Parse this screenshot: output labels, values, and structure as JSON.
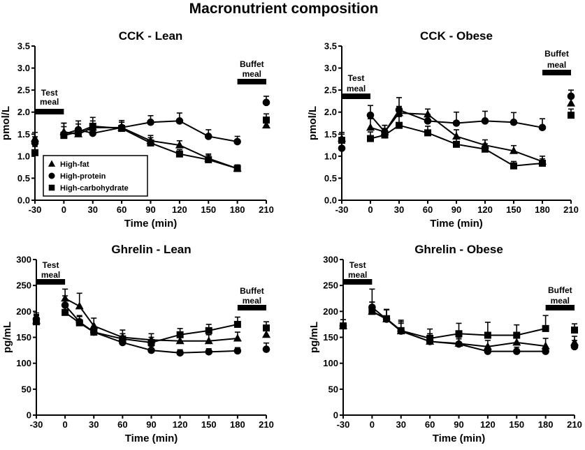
{
  "figure_title": "Macronutrient composition",
  "legend": [
    {
      "name": "High-fat",
      "marker": "triangle"
    },
    {
      "name": "High-protein",
      "marker": "circle"
    },
    {
      "name": "High-carbohydrate",
      "marker": "square"
    }
  ],
  "colors": {
    "ink": "#000000",
    "background": "#ffffff"
  },
  "chart_data": [
    {
      "type": "line",
      "title": "CCK - Lean",
      "xlabel": "Time (min)",
      "ylabel": "pmol/L",
      "xlim": [
        -30,
        210
      ],
      "ylim": [
        0,
        3.5
      ],
      "xticks": [
        -30,
        0,
        30,
        60,
        90,
        120,
        150,
        180,
        210
      ],
      "yticks": [
        "0.0",
        "0.5",
        "1.0",
        "1.5",
        "2.0",
        "2.5",
        "3.0",
        "3.5"
      ],
      "x": [
        0,
        15,
        30,
        60,
        90,
        120,
        150,
        180
      ],
      "x_separate": [
        -30,
        210
      ],
      "test_meal_label": "Test\nmeal",
      "test_meal_range": [
        -30,
        0
      ],
      "buffet_meal_label": "Buffet\nmeal",
      "buffet_meal_range": [
        180,
        210
      ],
      "legend_location": "lower-left",
      "series": [
        {
          "name": "High-fat",
          "marker": "triangle",
          "values": [
            1.55,
            1.5,
            1.65,
            1.65,
            1.35,
            1.25,
            0.95,
            0.72
          ],
          "errors": [
            0.2,
            0.15,
            0.15,
            0.12,
            0.12,
            0.1,
            0.1,
            0.08
          ],
          "separate": [
            1.4,
            1.7
          ]
        },
        {
          "name": "High-protein",
          "marker": "circle",
          "values": [
            1.5,
            1.6,
            1.52,
            1.65,
            1.77,
            1.8,
            1.45,
            1.33
          ],
          "errors": [
            0.25,
            0.2,
            0.12,
            0.12,
            0.15,
            0.18,
            0.15,
            0.12
          ],
          "separate": [
            1.3,
            2.22
          ]
        },
        {
          "name": "High-carbohydrate",
          "marker": "square",
          "values": [
            1.47,
            1.55,
            1.68,
            1.63,
            1.3,
            1.05,
            0.92,
            0.72
          ],
          "errors": [
            0.2,
            0.18,
            0.2,
            0.18,
            0.12,
            0.1,
            0.1,
            0.08
          ],
          "separate": [
            1.08,
            1.82
          ]
        }
      ]
    },
    {
      "type": "line",
      "title": "CCK - Obese",
      "xlabel": "Time (min)",
      "ylabel": "pmol/L",
      "xlim": [
        -30,
        210
      ],
      "ylim": [
        0,
        3.5
      ],
      "xticks": [
        -30,
        0,
        30,
        60,
        90,
        120,
        150,
        180,
        210
      ],
      "yticks": [
        "0.0",
        "0.5",
        "1.0",
        "1.5",
        "2.0",
        "2.5",
        "3.0",
        "3.5"
      ],
      "x": [
        0,
        15,
        30,
        60,
        90,
        120,
        150,
        180
      ],
      "x_separate": [
        -30,
        210
      ],
      "test_meal_label": "Test\nmeal",
      "test_meal_range": [
        -30,
        0
      ],
      "buffet_meal_label": "Buffet\nmeal",
      "buffet_meal_range": [
        180,
        210
      ],
      "series": [
        {
          "name": "High-fat",
          "marker": "triangle",
          "values": [
            1.65,
            1.55,
            1.98,
            1.95,
            1.45,
            1.25,
            1.12,
            0.88
          ],
          "errors": [
            0.2,
            0.15,
            0.15,
            0.12,
            0.15,
            0.12,
            0.12,
            0.12
          ],
          "separate": [
            1.4,
            2.2
          ]
        },
        {
          "name": "High-protein",
          "marker": "circle",
          "values": [
            1.93,
            1.55,
            2.05,
            1.8,
            1.75,
            1.8,
            1.77,
            1.65
          ],
          "errors": [
            0.22,
            0.15,
            0.28,
            0.15,
            0.25,
            0.22,
            0.22,
            0.2
          ],
          "separate": [
            1.18,
            2.36
          ]
        },
        {
          "name": "High-carbohydrate",
          "marker": "square",
          "values": [
            1.4,
            1.48,
            1.7,
            1.53,
            1.27,
            1.16,
            0.78,
            0.84
          ],
          "errors": [
            0.15,
            0.15,
            0.2,
            0.15,
            0.15,
            0.12,
            0.1,
            0.1
          ],
          "separate": [
            1.36,
            1.93
          ]
        }
      ]
    },
    {
      "type": "line",
      "title": "Ghrelin - Lean",
      "xlabel": "Time (min)",
      "ylabel": "pg/mL",
      "xlim": [
        -30,
        210
      ],
      "ylim": [
        0,
        300
      ],
      "xticks": [
        -30,
        0,
        30,
        60,
        90,
        120,
        150,
        180,
        210
      ],
      "yticks": [
        "0",
        "50",
        "100",
        "150",
        "200",
        "250",
        "300"
      ],
      "x": [
        0,
        15,
        30,
        60,
        90,
        120,
        150,
        180
      ],
      "x_separate": [
        -30,
        210
      ],
      "test_meal_label": "Test\nmeal",
      "test_meal_range": [
        -30,
        0
      ],
      "buffet_meal_label": "Buffet\nmeal",
      "buffet_meal_range": [
        180,
        210
      ],
      "series": [
        {
          "name": "High-fat",
          "marker": "triangle",
          "values": [
            225,
            210,
            172,
            150,
            145,
            143,
            143,
            148
          ],
          "errors": [
            18,
            25,
            15,
            14,
            12,
            12,
            12,
            12
          ],
          "separate": [
            182,
            155
          ]
        },
        {
          "name": "High-protein",
          "marker": "circle",
          "values": [
            212,
            180,
            160,
            140,
            125,
            120,
            122,
            124
          ],
          "errors": [
            18,
            12,
            10,
            8,
            8,
            6,
            6,
            6
          ],
          "separate": [
            185,
            127
          ]
        },
        {
          "name": "High-carbohydrate",
          "marker": "square",
          "values": [
            198,
            178,
            160,
            147,
            140,
            155,
            163,
            175
          ],
          "errors": [
            15,
            12,
            10,
            10,
            10,
            12,
            12,
            14
          ],
          "separate": [
            180,
            168
          ]
        }
      ]
    },
    {
      "type": "line",
      "title": "Ghrelin - Obese",
      "xlabel": "Time (min)",
      "ylabel": "pg/mL",
      "xlim": [
        -30,
        210
      ],
      "ylim": [
        0,
        300
      ],
      "xticks": [
        -30,
        0,
        30,
        60,
        90,
        120,
        150,
        180,
        210
      ],
      "yticks": [
        "0",
        "50",
        "100",
        "150",
        "200",
        "250",
        "300"
      ],
      "x": [
        0,
        15,
        30,
        60,
        90,
        120,
        150,
        180
      ],
      "x_separate": [
        -30,
        210
      ],
      "test_meal_label": "Test\nmeal",
      "test_meal_range": [
        -30,
        0
      ],
      "buffet_meal_label": "Buffet\nmeal",
      "buffet_meal_range": [
        180,
        210
      ],
      "series": [
        {
          "name": "High-fat",
          "marker": "triangle",
          "values": [
            200,
            185,
            162,
            142,
            138,
            132,
            140,
            133
          ],
          "errors": [
            18,
            18,
            18,
            15,
            12,
            12,
            15,
            15
          ],
          "separate": [
            172,
            140
          ]
        },
        {
          "name": "High-protein",
          "marker": "circle",
          "values": [
            208,
            185,
            162,
            142,
            137,
            123,
            123,
            123
          ],
          "errors": [
            35,
            18,
            15,
            12,
            10,
            10,
            8,
            8
          ],
          "separate": [
            172,
            132
          ]
        },
        {
          "name": "High-carbohydrate",
          "marker": "square",
          "values": [
            200,
            186,
            163,
            148,
            157,
            154,
            154,
            167
          ],
          "errors": [
            18,
            18,
            20,
            18,
            20,
            25,
            20,
            25
          ],
          "separate": [
            172,
            164
          ]
        }
      ]
    }
  ]
}
